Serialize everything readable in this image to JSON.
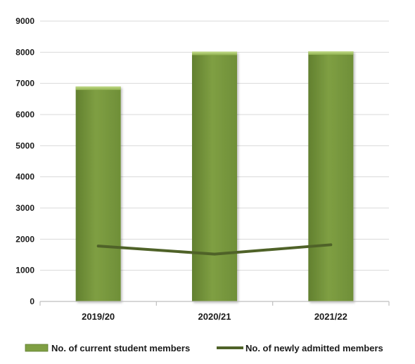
{
  "chart_data": {
    "type": "bar",
    "categories": [
      "2019/20",
      "2020/21",
      "2021/22"
    ],
    "series": [
      {
        "name": "No. of current student members",
        "kind": "bar",
        "values": [
          6900,
          8020,
          8030
        ]
      },
      {
        "name": "No. of newly admitted members",
        "kind": "line",
        "values": [
          1780,
          1520,
          1820
        ]
      }
    ],
    "title": "",
    "xlabel": "",
    "ylabel": "",
    "ylim": [
      0,
      9000
    ],
    "yticks": [
      "0",
      "1000",
      "2000",
      "3000",
      "4000",
      "5000",
      "6000",
      "7000",
      "8000",
      "9000"
    ],
    "grid": true,
    "legend_position": "bottom",
    "colors": {
      "bar_fill": "#7f9f43",
      "bar_light": "#a3c063",
      "bar_dark": "#5d7a2c",
      "line": "#4f6228",
      "grid": "#d9d9d9",
      "axis": "#bfbfbf"
    }
  }
}
